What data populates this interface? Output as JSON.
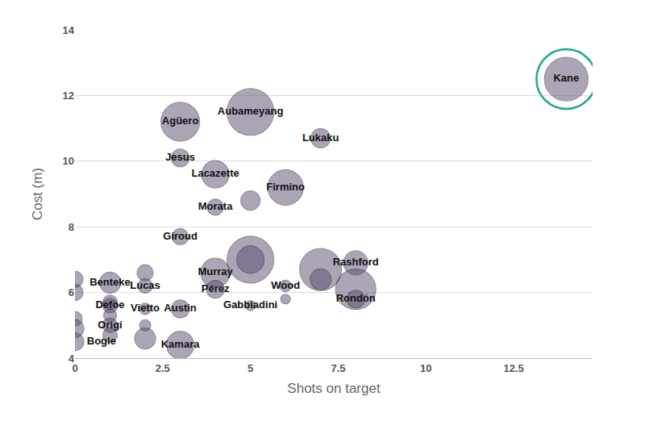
{
  "chart_data": {
    "type": "scatter",
    "marker": "bubble",
    "x_label": "Shots on target",
    "y_label": "Cost (m)",
    "color": "#5c4d70",
    "grid": true,
    "data_labels": true,
    "xlim": [
      0,
      14.75
    ],
    "xticks": [
      0,
      2.5,
      5,
      7.5,
      10,
      12.5
    ],
    "ylim": [
      4,
      14
    ],
    "yticks": [
      4,
      6,
      8,
      10,
      12,
      14
    ],
    "labels": [
      "Kane",
      "Aubameyang",
      "Agüero",
      "Lukaku",
      "Jesus",
      "Lacazette",
      "Firmino",
      null,
      "Morata",
      "Giroud",
      null,
      null,
      "Murray",
      "Pérez",
      "Rashford",
      null,
      null,
      null,
      "Rondón",
      "Wood",
      null,
      "Gabbiadini",
      null,
      "Lucas",
      "Benteke",
      null,
      "Defoe",
      null,
      "Origi",
      null,
      "Vietto",
      null,
      null,
      "Austin",
      "Kamara",
      "Bogle",
      null,
      null,
      null,
      null
    ],
    "x": [
      14,
      5,
      3,
      7,
      3,
      4,
      6,
      5,
      4,
      3,
      5,
      5,
      4,
      4,
      8,
      7,
      7,
      8,
      8,
      6,
      6,
      5,
      2,
      2,
      1,
      1,
      1,
      1,
      1,
      1,
      2,
      2,
      2,
      3,
      3,
      0,
      0,
      0,
      0,
      0
    ],
    "values": [
      12.5,
      11.5,
      11.2,
      10.7,
      10.1,
      9.6,
      9.2,
      8.8,
      8.6,
      7.7,
      7.0,
      7.0,
      6.6,
      6.1,
      6.9,
      6.7,
      6.4,
      6.1,
      5.8,
      6.2,
      5.8,
      5.6,
      6.6,
      6.2,
      6.3,
      5.7,
      5.6,
      5.3,
      5.0,
      4.7,
      5.5,
      5.0,
      4.6,
      5.5,
      4.4,
      4.5,
      6.4,
      6.0,
      5.2,
      4.9
    ],
    "sizes": [
      54,
      58,
      48,
      24,
      22,
      34,
      44,
      24,
      20,
      20,
      58,
      34,
      36,
      22,
      30,
      52,
      26,
      50,
      22,
      14,
      12,
      12,
      20,
      18,
      26,
      18,
      18,
      16,
      18,
      18,
      14,
      14,
      26,
      22,
      34,
      22,
      20,
      20,
      18,
      22
    ]
  }
}
